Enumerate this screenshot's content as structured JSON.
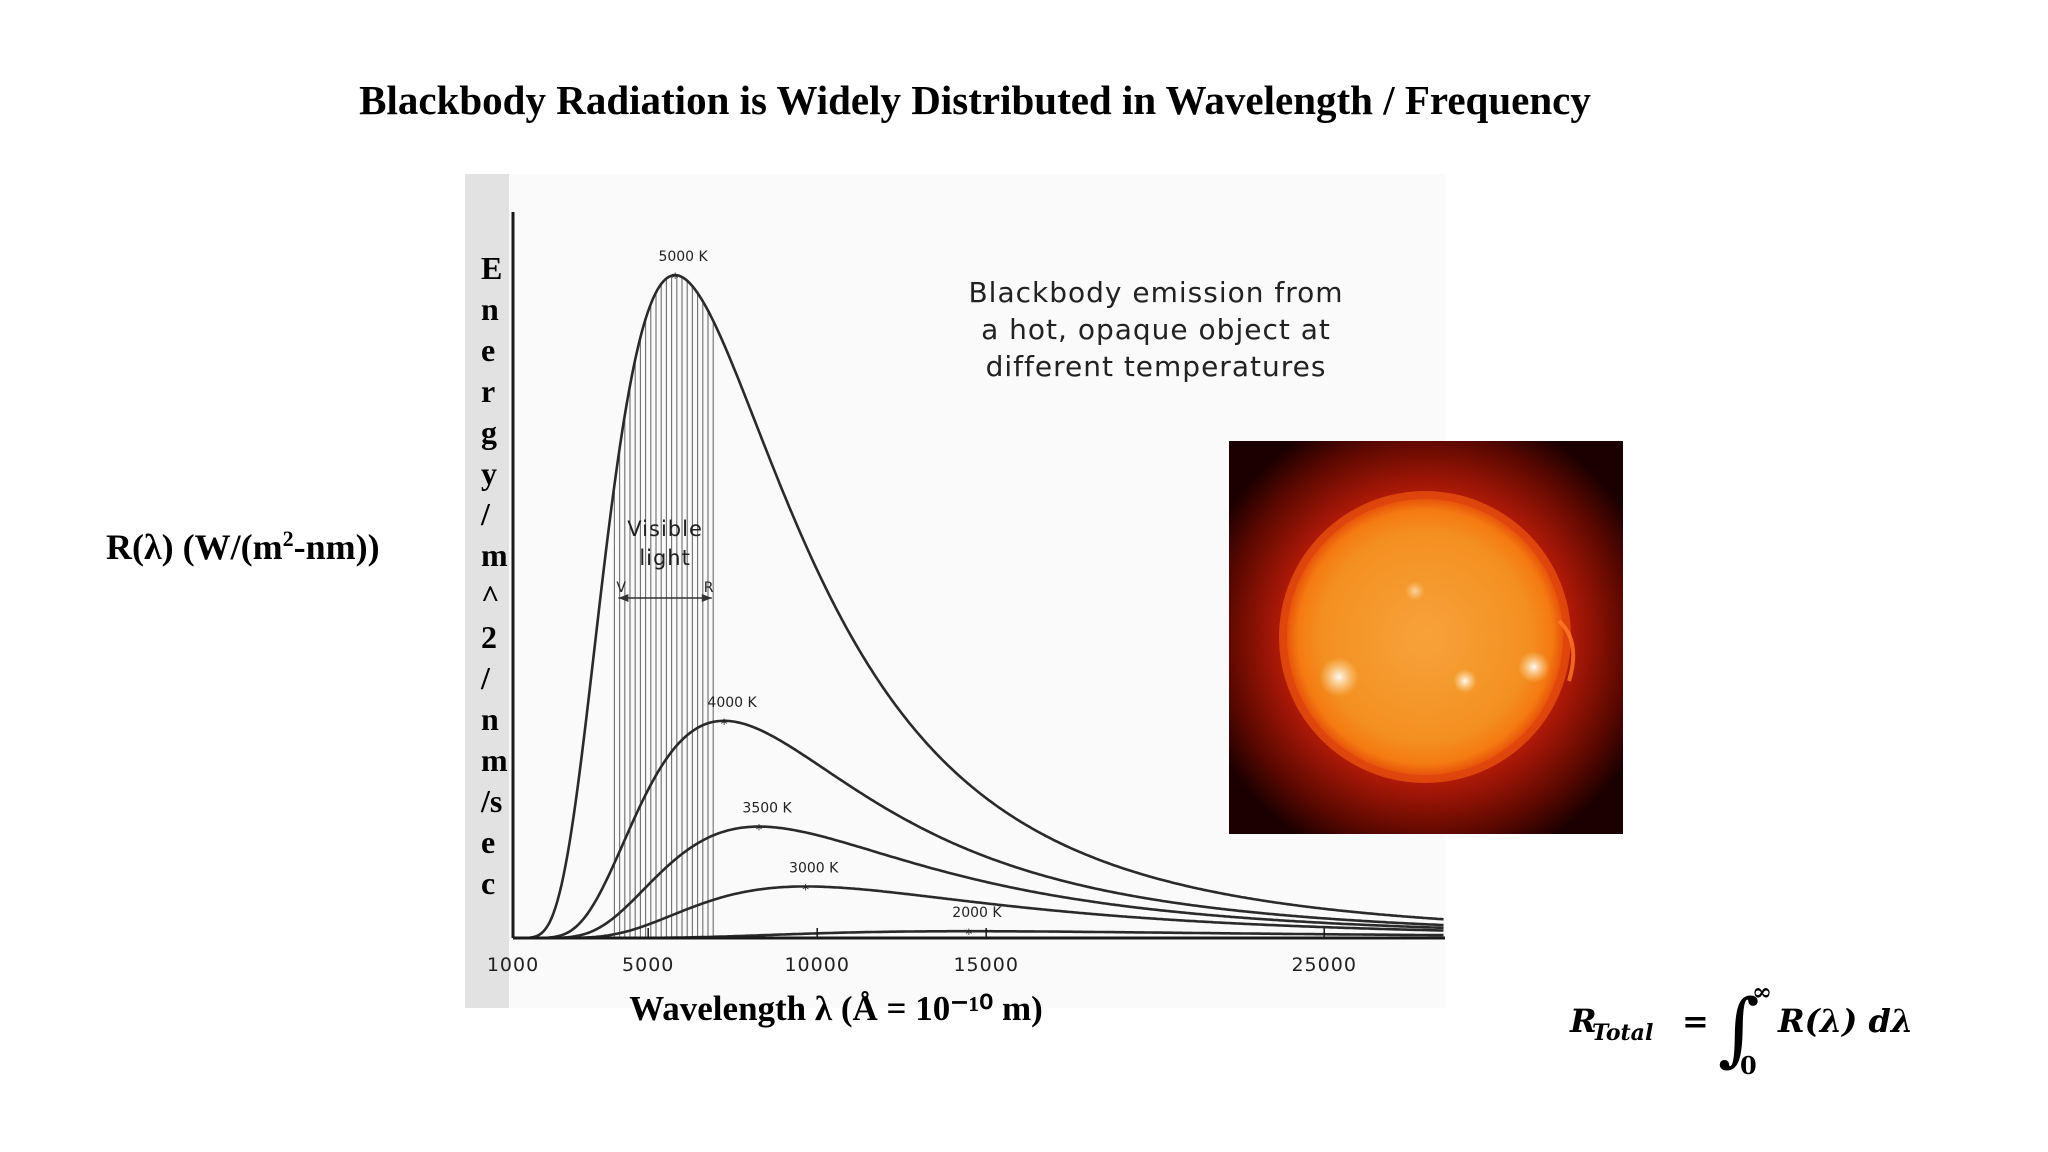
{
  "slide_title": "Blackbody Radiation is Widely Distributed in Wavelength / Frequency",
  "left_label": {
    "prefix": "R(λ) (W/(m",
    "sup": "2",
    "suffix": "-nm))"
  },
  "caption": [
    "Blackbody emission from",
    "a hot, opaque object at",
    "different temperatures"
  ],
  "formula": {
    "lhs": "R",
    "lhs_sub": "Total",
    "equals": "=",
    "integral": "∫",
    "upper": "∞",
    "lower": "0",
    "integrand": "R(λ) dλ"
  },
  "chart_data": {
    "type": "line",
    "x_label": "Wavelength λ (Å = 10⁻¹⁰ m)",
    "y_label": [
      "E",
      "n",
      "e",
      "r",
      "g",
      "y",
      "/",
      "m",
      "^",
      "2",
      "/",
      "n",
      "m",
      "/s",
      "e",
      "c"
    ],
    "x_ticks": [
      1000,
      5000,
      10000,
      15000,
      25000
    ],
    "x_tick_labels": [
      "1000",
      "5000",
      "10000",
      "15000",
      "25000"
    ],
    "x_range": [
      1000,
      29000
    ],
    "y_range": [
      0,
      1.05
    ],
    "visible_band": {
      "label": [
        "Visible",
        "light"
      ],
      "start": 4000,
      "end": 7000,
      "start_marker": "V",
      "end_marker": "R"
    },
    "series": [
      {
        "name": "5000 K",
        "temperature": 5000
      },
      {
        "name": "4000 K",
        "temperature": 4000
      },
      {
        "name": "3500 K",
        "temperature": 3500
      },
      {
        "name": "3000 K",
        "temperature": 3000
      },
      {
        "name": "2000 K",
        "temperature": 2000
      }
    ],
    "peak_marker": "*"
  },
  "colors": {
    "curve": "#2a2a2a",
    "axis": "#1a1a1a",
    "band": "#6e6e6e",
    "sun_core": "#f7a33a",
    "sun_edge": "#c81e0a"
  },
  "sun_image": "photo of the Sun"
}
